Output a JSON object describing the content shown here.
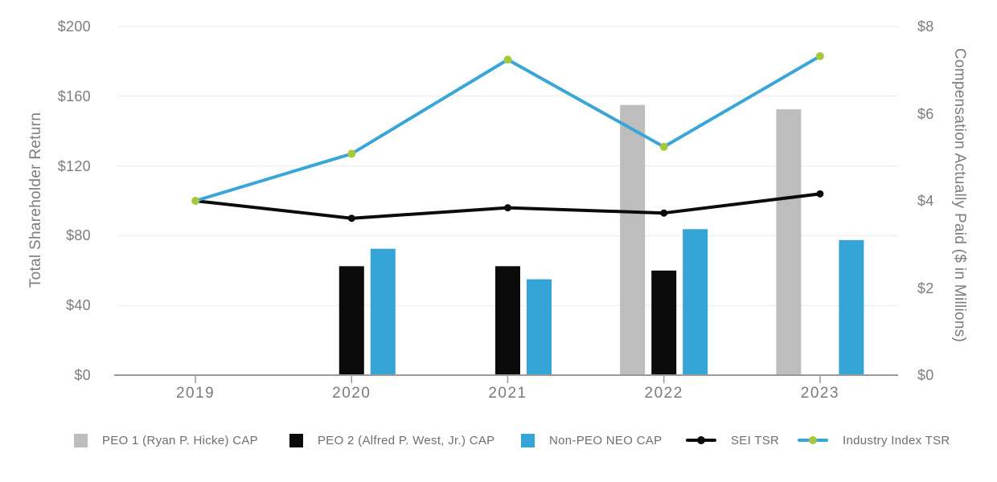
{
  "colors": {
    "gray_bar": "#bdbdbd",
    "black_bar": "#0b0b0b",
    "blue_bar": "#35a4d7",
    "sei_line": "#0b0b0b",
    "industry_line": "#3aa6d8",
    "industry_marker": "#a5c83c",
    "grid": "#e9e9e9",
    "axis": "#9a9a9a",
    "tick_text": "#7d7d7d"
  },
  "chart_data": {
    "type": "combo-bar-line",
    "categories": [
      "2019",
      "2020",
      "2021",
      "2022",
      "2023"
    ],
    "bar_series": [
      {
        "name": "PEO 1 (Ryan P. Hicke) CAP",
        "axis": "right",
        "color": "#bdbdbd",
        "values": [
          null,
          null,
          null,
          6.2,
          6.1
        ]
      },
      {
        "name": "PEO 2 (Alfred P. West, Jr.) CAP",
        "axis": "right",
        "color": "#0b0b0b",
        "values": [
          null,
          2.5,
          2.5,
          2.4,
          null
        ]
      },
      {
        "name": "Non-PEO NEO CAP",
        "axis": "right",
        "color": "#35a4d7",
        "values": [
          null,
          2.9,
          2.2,
          3.35,
          3.1
        ]
      }
    ],
    "line_series": [
      {
        "name": "SEI TSR",
        "axis": "left",
        "color": "#0b0b0b",
        "marker_color": "#0b0b0b",
        "marker_radius": 4.5,
        "values": [
          100,
          90,
          96,
          93,
          104
        ]
      },
      {
        "name": "Industry Index TSR",
        "axis": "left",
        "color": "#3aa6d8",
        "marker_color": "#a5c83c",
        "marker_radius": 5,
        "values": [
          100,
          127,
          181,
          131,
          183
        ]
      }
    ],
    "left_axis": {
      "title": "Total Shareholder Return",
      "tick_labels": [
        "$0",
        "$40",
        "$80",
        "$120",
        "$160",
        "$200"
      ],
      "tick_values": [
        0,
        40,
        80,
        120,
        160,
        200
      ],
      "max": 200
    },
    "right_axis": {
      "title": "Compensation Actually Paid ($ in Millions)",
      "tick_labels": [
        "$0",
        "$2",
        "$4",
        "$6",
        "$8"
      ],
      "tick_values": [
        0,
        2,
        4,
        6,
        8
      ],
      "max": 8
    },
    "grid": true,
    "legend_position": "bottom"
  },
  "legend": {
    "items": [
      {
        "label": "PEO 1  (Ryan P. Hicke) CAP",
        "swatch": "square",
        "color": "#bdbdbd"
      },
      {
        "label": "PEO 2 (Alfred P. West, Jr.) CAP",
        "swatch": "square",
        "color": "#0b0b0b"
      },
      {
        "label": "Non-PEO NEO CAP",
        "swatch": "square",
        "color": "#35a4d7"
      },
      {
        "label": "SEI TSR",
        "swatch": "line",
        "color": "#0b0b0b",
        "marker_color": "#0b0b0b"
      },
      {
        "label": "Industry Index TSR",
        "swatch": "line",
        "color": "#3aa6d8",
        "marker_color": "#a5c83c"
      }
    ]
  }
}
